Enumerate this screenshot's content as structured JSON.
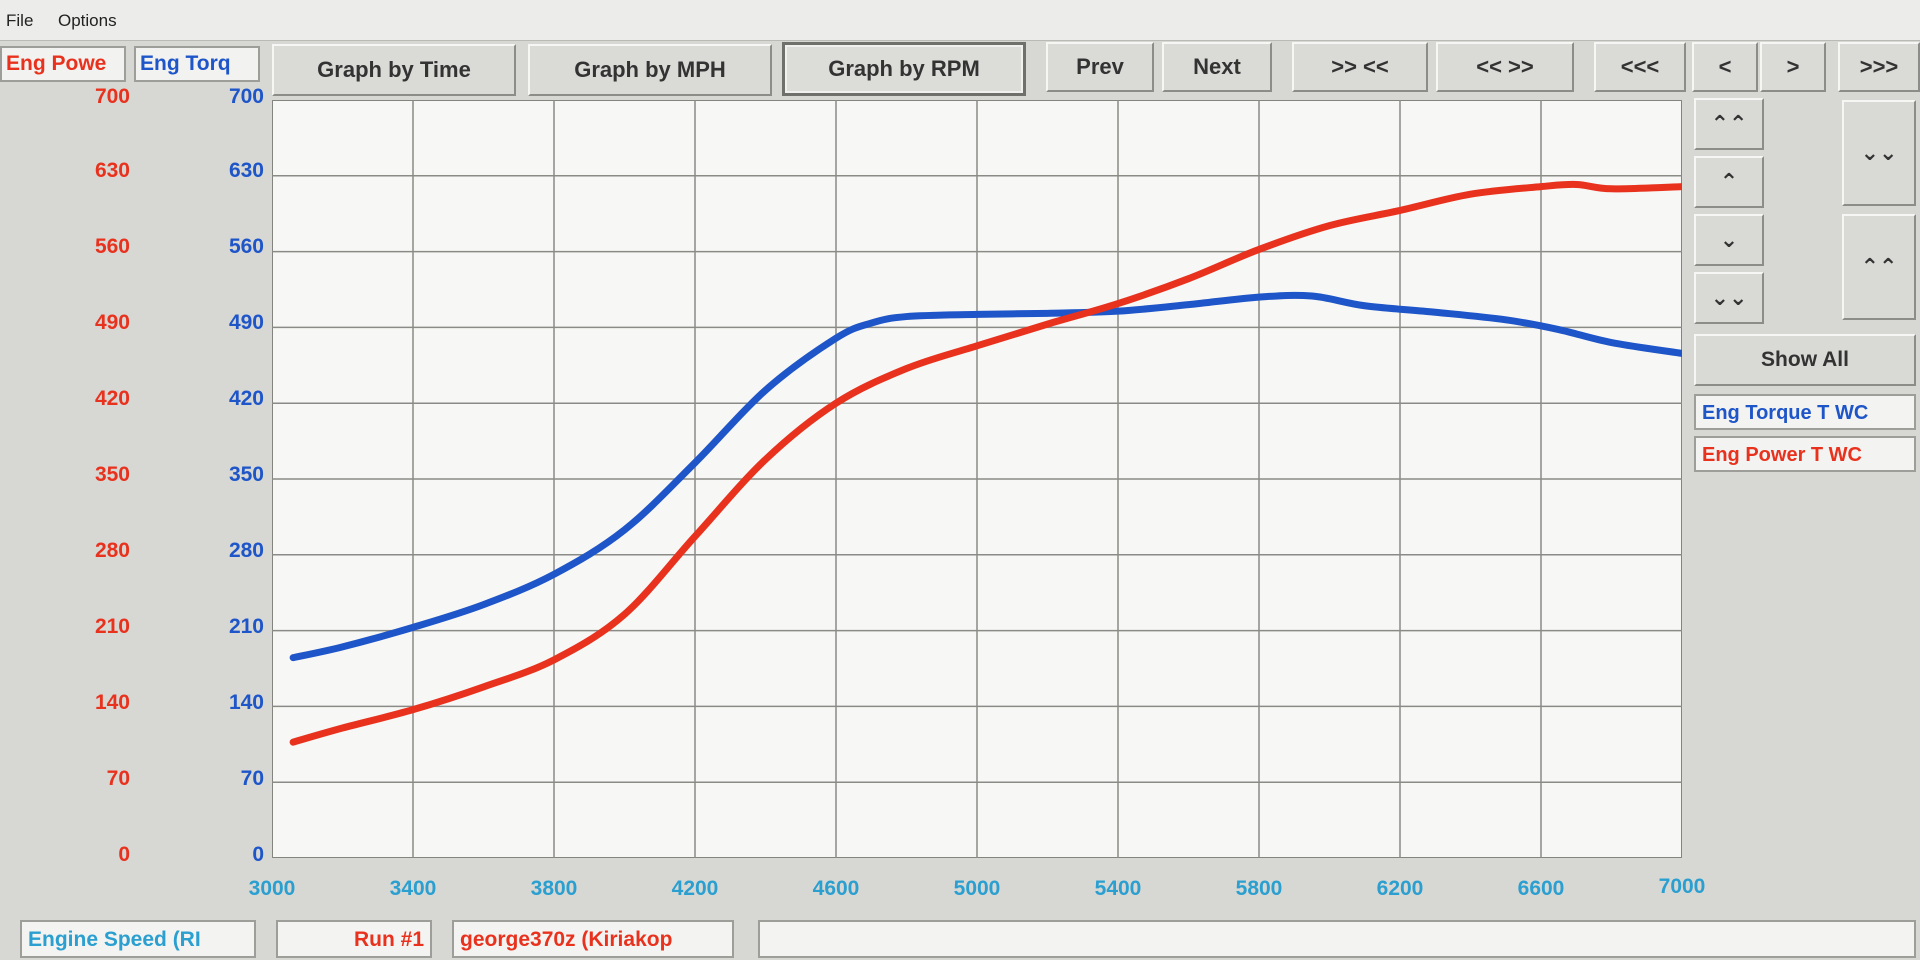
{
  "menu": {
    "file": "File",
    "options": "Options"
  },
  "headers": {
    "power_label": "Eng Powe",
    "torque_label": "Eng Torq"
  },
  "toolbar": {
    "graph_time": "Graph by Time",
    "graph_mph": "Graph by MPH",
    "graph_rpm": "Graph by RPM",
    "prev": "Prev",
    "next": "Next",
    "zoom_in": ">> <<",
    "zoom_out": "<< >>",
    "first": "<<<",
    "left": "<",
    "right": ">",
    "last": ">>>"
  },
  "side": {
    "up_fast": "⌃⌃",
    "up": "⌃",
    "down": "⌄",
    "down_fast": "⌄⌄",
    "right_down": "⌄⌄",
    "right_up": "⌃⌃",
    "show_all": "Show All",
    "legend_torque": "Eng Torque T WC",
    "legend_power": "Eng Power T WC"
  },
  "status": {
    "x_label": "Engine Speed (RI",
    "run": "Run #1",
    "name": "george370z (Kiriakop",
    "extra": ""
  },
  "colors": {
    "power": "#e8321e",
    "torque": "#1e55c8",
    "xaxis": "#2a9fd0"
  },
  "chart_data": {
    "type": "line",
    "xlabel": "Engine Speed (RI",
    "xlim": [
      3000,
      7000
    ],
    "ylim": [
      0,
      700
    ],
    "x_ticks": [
      "3000",
      "3400",
      "3800",
      "4200",
      "4600",
      "5000",
      "5400",
      "5800",
      "6200",
      "6600",
      "7000"
    ],
    "y_ticks": [
      "0",
      "70",
      "140",
      "210",
      "280",
      "350",
      "420",
      "490",
      "560",
      "630",
      "700"
    ],
    "series": [
      {
        "name": "Eng Torque T WC",
        "color": "#1e55c8",
        "x": [
          3060,
          3200,
          3400,
          3600,
          3800,
          4000,
          4200,
          4400,
          4600,
          4700,
          4800,
          5000,
          5200,
          5400,
          5600,
          5800,
          5950,
          6100,
          6300,
          6500,
          6650,
          6800,
          7000
        ],
        "y": [
          185,
          195,
          213,
          234,
          262,
          303,
          365,
          432,
          480,
          494,
          500,
          502,
          503,
          505,
          511,
          518,
          519,
          510,
          504,
          497,
          488,
          476,
          466
        ]
      },
      {
        "name": "Eng Power T WC",
        "color": "#e8321e",
        "x": [
          3060,
          3200,
          3400,
          3600,
          3800,
          4000,
          4200,
          4400,
          4600,
          4800,
          5000,
          5200,
          5400,
          5600,
          5800,
          6000,
          6200,
          6400,
          6600,
          6700,
          6800,
          7000
        ],
        "y": [
          107,
          120,
          137,
          158,
          183,
          225,
          297,
          368,
          420,
          452,
          473,
          493,
          512,
          535,
          562,
          584,
          598,
          613,
          620,
          622,
          618,
          620
        ]
      }
    ]
  }
}
